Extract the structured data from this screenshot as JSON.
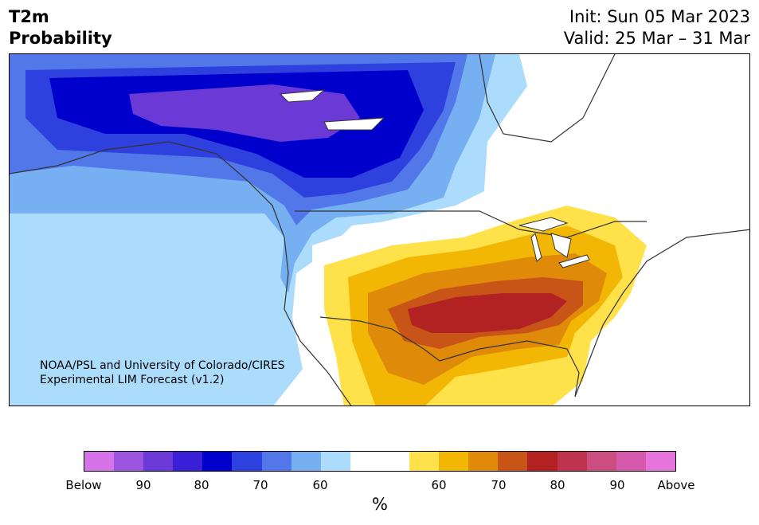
{
  "title": {
    "variable": "T2m",
    "product": "Probability",
    "init": "Init: Sun 05 Mar 2023",
    "valid": "Valid: 25 Mar – 31 Mar"
  },
  "credit": {
    "line1": "NOAA/PSL and University of Colorado/CIRES",
    "line2": "Experimental LIM Forecast (v1.2)"
  },
  "colorbar": {
    "unit": "%",
    "colors": [
      "#d673e8",
      "#9b55e0",
      "#6b3ad6",
      "#3a1fd6",
      "#0000cc",
      "#2e40dd",
      "#5277e8",
      "#76b0f2",
      "#acdcfb",
      "#ffffff",
      "#ffffff",
      "#ffe14a",
      "#f2b705",
      "#e08a0a",
      "#c85517",
      "#b22222",
      "#c0334f",
      "#cc4d80",
      "#d65aab",
      "#e574dc"
    ],
    "tick_labels": [
      "Below",
      "90",
      "80",
      "70",
      "60",
      "60",
      "70",
      "80",
      "90",
      "Above"
    ]
  },
  "map": {
    "region": "North America",
    "colors": {
      "land": "#ffffff",
      "border": "#333333",
      "lake": "#ffffff"
    }
  }
}
